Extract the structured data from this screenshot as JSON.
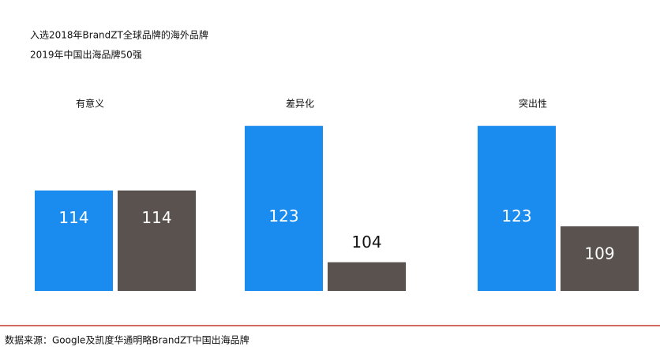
{
  "chart_data": {
    "type": "bar",
    "categories": [
      "有意义",
      "差异化",
      "突出性"
    ],
    "series": [
      {
        "name": "入选2018年BrandZT全球品牌的海外品牌",
        "color": "#1a8cf0",
        "values": [
          114,
          123,
          123
        ]
      },
      {
        "name": "2019年中国出海品牌50强",
        "color": "#59524f",
        "values": [
          114,
          104,
          109
        ]
      }
    ],
    "source": "数据来源：Google及凯度华通明略BrandZT中国出海品牌"
  }
}
